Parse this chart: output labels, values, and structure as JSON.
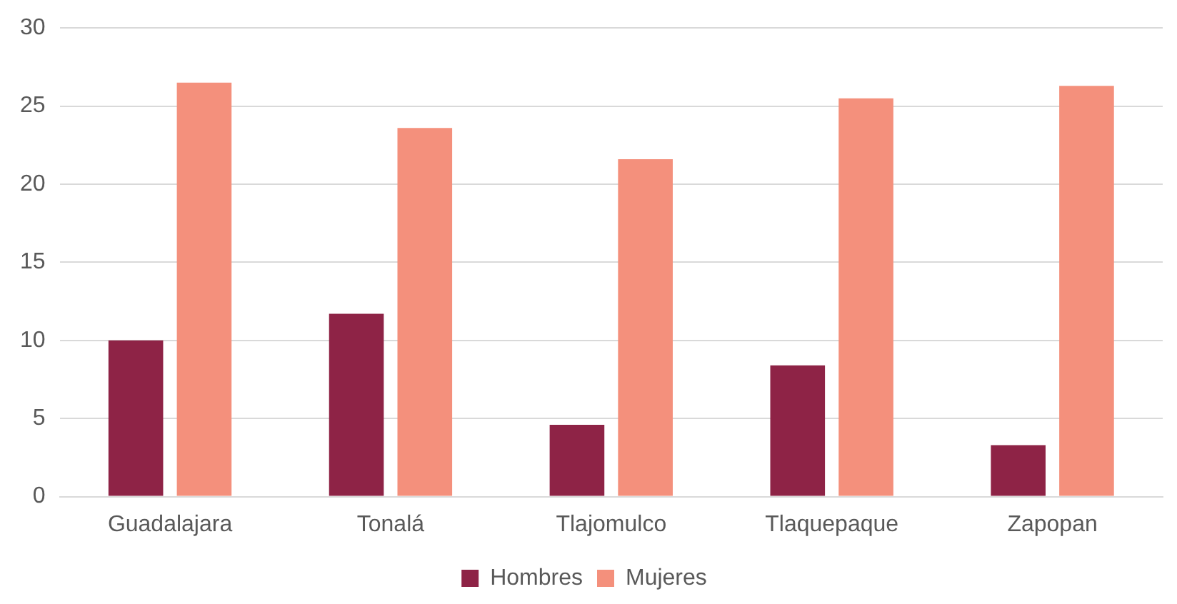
{
  "chart_data": {
    "type": "bar",
    "categories": [
      "Guadalajara",
      "Tonalá",
      "Tlajomulco",
      "Tlaquepaque",
      "Zapopan"
    ],
    "series": [
      {
        "name": "Hombres",
        "color": "#8e2346",
        "values": [
          10.0,
          11.7,
          4.6,
          8.4,
          3.3
        ]
      },
      {
        "name": "Mujeres",
        "color": "#f4907c",
        "values": [
          26.5,
          23.6,
          21.6,
          25.5,
          26.3
        ]
      }
    ],
    "ylim": [
      0,
      30
    ],
    "yticks": [
      0,
      5,
      10,
      15,
      20,
      25,
      30
    ],
    "grid": "y",
    "legend": "bottom"
  }
}
